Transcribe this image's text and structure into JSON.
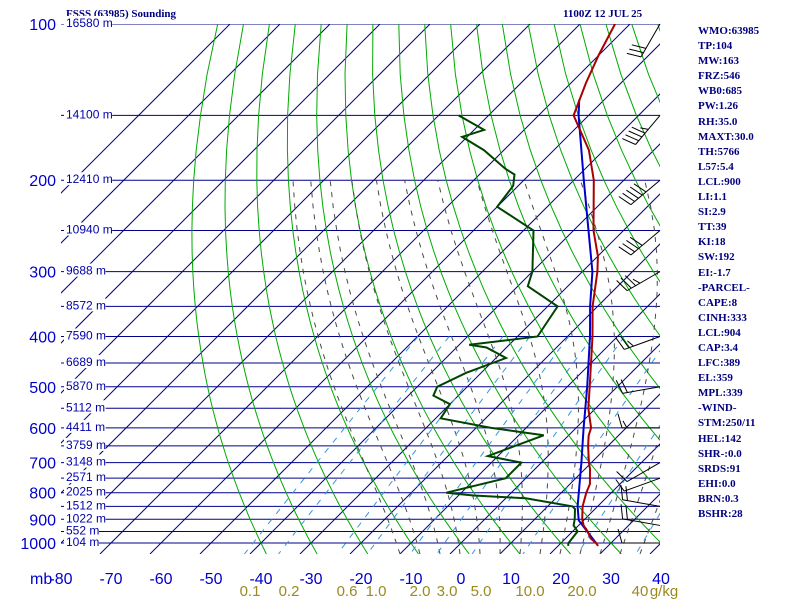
{
  "title_left": "FSSS (63985) Sounding",
  "title_right": "1100Z 12 JUL 25",
  "chart_data": {
    "type": "skew-t log-p sounding",
    "pressure_levels_mb": [
      100,
      200,
      300,
      400,
      500,
      600,
      700,
      800,
      900,
      1000
    ],
    "pressure_tick_labels": [
      "100",
      "200",
      "300",
      "400",
      "500",
      "600",
      "700",
      "800",
      "900",
      "1000"
    ],
    "pressure_unit_label": "mb",
    "temperature_ticks": [
      "-80",
      "-70",
      "-60",
      "-50",
      "-40",
      "-30",
      "-20",
      "-10",
      "0",
      "10",
      "20",
      "30",
      "40"
    ],
    "temperature_tick_values": [
      -80,
      -70,
      -60,
      -50,
      -40,
      -30,
      -20,
      -10,
      0,
      10,
      20,
      30,
      40
    ],
    "mixing_ratio_labels": [
      "0.1",
      "0.2",
      "0.6",
      "1.0",
      "2.0",
      "3.0",
      "5.0",
      "10.0",
      "20.0",
      "40",
      "g/kg"
    ],
    "mixing_ratio_values": [
      0.1,
      0.2,
      0.6,
      1.0,
      2.0,
      3.0,
      5.0,
      10.0,
      20.0,
      40
    ],
    "height_labels": [
      {
        "p": 100,
        "text": "16580 m"
      },
      {
        "p": 150,
        "text": "14100 m"
      },
      {
        "p": 200,
        "text": "12410 m"
      },
      {
        "p": 250,
        "text": "10940 m"
      },
      {
        "p": 300,
        "text": "9688 m"
      },
      {
        "p": 350,
        "text": "8572 m"
      },
      {
        "p": 400,
        "text": "7590 m"
      },
      {
        "p": 450,
        "text": "6689 m"
      },
      {
        "p": 500,
        "text": "5870 m"
      },
      {
        "p": 550,
        "text": "5112 m"
      },
      {
        "p": 600,
        "text": "4411 m"
      },
      {
        "p": 650,
        "text": "3759 m"
      },
      {
        "p": 700,
        "text": "3148 m"
      },
      {
        "p": 750,
        "text": "2571 m"
      },
      {
        "p": 800,
        "text": "2025 m"
      },
      {
        "p": 850,
        "text": "1512 m"
      },
      {
        "p": 900,
        "text": "1022 m"
      },
      {
        "p": 950,
        "text": "552 m"
      },
      {
        "p": 1000,
        "text": "104 m"
      }
    ],
    "temperature_profile": [
      {
        "p": 1013,
        "t": 28
      },
      {
        "p": 1000,
        "t": 27
      },
      {
        "p": 980,
        "t": 25
      },
      {
        "p": 950,
        "t": 23
      },
      {
        "p": 925,
        "t": 21
      },
      {
        "p": 900,
        "t": 19.5
      },
      {
        "p": 850,
        "t": 17
      },
      {
        "p": 800,
        "t": 15
      },
      {
        "p": 770,
        "t": 14
      },
      {
        "p": 720,
        "t": 11
      },
      {
        "p": 700,
        "t": 9.5
      },
      {
        "p": 650,
        "t": 6
      },
      {
        "p": 620,
        "t": 4
      },
      {
        "p": 600,
        "t": 3
      },
      {
        "p": 550,
        "t": -1.5
      },
      {
        "p": 500,
        "t": -5.5
      },
      {
        "p": 450,
        "t": -10
      },
      {
        "p": 400,
        "t": -15
      },
      {
        "p": 350,
        "t": -21
      },
      {
        "p": 300,
        "t": -27
      },
      {
        "p": 280,
        "t": -30
      },
      {
        "p": 250,
        "t": -36
      },
      {
        "p": 200,
        "t": -46
      },
      {
        "p": 175,
        "t": -53
      },
      {
        "p": 150,
        "t": -63
      },
      {
        "p": 130,
        "t": -67
      },
      {
        "p": 115,
        "t": -70
      },
      {
        "p": 100,
        "t": -73
      }
    ],
    "dewpoint_profile": [
      {
        "p": 1013,
        "t": 22
      },
      {
        "p": 1000,
        "t": 21.5
      },
      {
        "p": 950,
        "t": 21
      },
      {
        "p": 925,
        "t": 19
      },
      {
        "p": 900,
        "t": 18
      },
      {
        "p": 860,
        "t": 16
      },
      {
        "p": 850,
        "t": 15
      },
      {
        "p": 820,
        "t": 4
      },
      {
        "p": 810,
        "t": -7
      },
      {
        "p": 800,
        "t": -13
      },
      {
        "p": 750,
        "t": -4
      },
      {
        "p": 700,
        "t": -4
      },
      {
        "p": 680,
        "t": -12
      },
      {
        "p": 620,
        "t": -5
      },
      {
        "p": 600,
        "t": -17
      },
      {
        "p": 575,
        "t": -29
      },
      {
        "p": 540,
        "t": -30
      },
      {
        "p": 520,
        "t": -35
      },
      {
        "p": 500,
        "t": -36
      },
      {
        "p": 470,
        "t": -33
      },
      {
        "p": 440,
        "t": -28
      },
      {
        "p": 420,
        "t": -34
      },
      {
        "p": 415,
        "t": -38
      },
      {
        "p": 400,
        "t": -26
      },
      {
        "p": 350,
        "t": -28
      },
      {
        "p": 320,
        "t": -38
      },
      {
        "p": 300,
        "t": -40
      },
      {
        "p": 250,
        "t": -48
      },
      {
        "p": 225,
        "t": -60
      },
      {
        "p": 205,
        "t": -61
      },
      {
        "p": 195,
        "t": -63
      },
      {
        "p": 190,
        "t": -66
      },
      {
        "p": 175,
        "t": -74
      },
      {
        "p": 165,
        "t": -81
      },
      {
        "p": 160,
        "t": -78
      },
      {
        "p": 150,
        "t": -86
      }
    ],
    "parcel_profile": [
      {
        "p": 1000,
        "t": 27
      },
      {
        "p": 904,
        "t": 19
      },
      {
        "p": 850,
        "t": 16
      },
      {
        "p": 700,
        "t": 8
      },
      {
        "p": 600,
        "t": 1.5
      },
      {
        "p": 500,
        "t": -6
      },
      {
        "p": 400,
        "t": -15.5
      },
      {
        "p": 350,
        "t": -21.5
      },
      {
        "p": 300,
        "t": -28
      },
      {
        "p": 250,
        "t": -37
      },
      {
        "p": 200,
        "t": -48
      },
      {
        "p": 150,
        "t": -62
      },
      {
        "p": 140,
        "t": -65
      }
    ],
    "wind_barbs": [
      {
        "p": 1000,
        "dir": 270,
        "kt": 10
      },
      {
        "p": 925,
        "dir": 280,
        "kt": 20
      },
      {
        "p": 850,
        "dir": 280,
        "kt": 20
      },
      {
        "p": 750,
        "dir": 250,
        "kt": 10
      },
      {
        "p": 700,
        "dir": 240,
        "kt": 10
      },
      {
        "p": 600,
        "dir": 270,
        "kt": 15
      },
      {
        "p": 500,
        "dir": 260,
        "kt": 20
      },
      {
        "p": 400,
        "dir": 250,
        "kt": 25
      },
      {
        "p": 300,
        "dir": 240,
        "kt": 35
      },
      {
        "p": 250,
        "dir": 230,
        "kt": 40
      },
      {
        "p": 200,
        "dir": 230,
        "kt": 50
      },
      {
        "p": 150,
        "dir": 220,
        "kt": 45
      },
      {
        "p": 100,
        "dir": 210,
        "kt": 30
      }
    ],
    "colors": {
      "isobar": "#00008b",
      "isotherm": "#00008b",
      "dry_adiabat": "#00aa00",
      "moist_adiabat": "#4a4a4a",
      "mixing_ratio": "#3399dd",
      "temperature": "#aa0000",
      "dewpoint": "#004400",
      "parcel": "#0000cc",
      "barb": "#000000",
      "label": "#0000cc"
    }
  },
  "indices": [
    "WMO:63985",
    "TP:104",
    "MW:163",
    "FRZ:546",
    "WB0:685",
    "PW:1.26",
    "RH:35.0",
    "MAXT:30.0",
    "TH:5766",
    "L57:5.4",
    "LCL:900",
    "LI:1.1",
    "SI:2.9",
    "TT:39",
    "KI:18",
    "SW:192",
    "EI:-1.7",
    "-PARCEL-",
    "CAPE:8",
    "CINH:333",
    "LCL:904",
    "CAP:3.4",
    "LFC:389",
    "EL:359",
    "MPL:339",
    "-WIND-",
    "STM:250/11",
    "HEL:142",
    "SHR-:0.0",
    "SRDS:91",
    "EHI:0.0",
    "BRN:0.3",
    "BSHR:28"
  ]
}
